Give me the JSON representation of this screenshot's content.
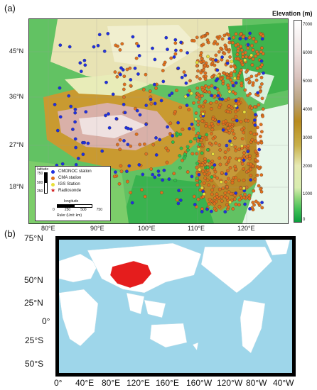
{
  "panel_a": {
    "label": "(a)",
    "colorbar": {
      "title": "Elevation (m)",
      "ticks": [
        "7000",
        "6000",
        "5000",
        "4000",
        "3000",
        "2000",
        "1000",
        "0"
      ],
      "colors": [
        "#0b9e3e",
        "#3fbf55",
        "#8fd77a",
        "#d9edb0",
        "#e6e9b3",
        "#c8b04a",
        "#b88a1e",
        "#b9a27c",
        "#d9c2bd",
        "#efe3e3",
        "#ffffff"
      ]
    },
    "lat_labels": [
      "45°N",
      "36°N",
      "27°N",
      "18°N"
    ],
    "lon_labels": [
      "80°E",
      "90°E",
      "100°E",
      "110°E",
      "120°E"
    ],
    "legend": {
      "items": [
        {
          "label": "CMONOC station",
          "color": "#1f2fe0"
        },
        {
          "label": "CMA station",
          "color": "#e0701c"
        },
        {
          "label": "IGS Station",
          "color": "#e8e03a"
        },
        {
          "label": "Radiosonde",
          "color": "#d11a1a"
        }
      ],
      "latitude_label": "latitude",
      "lat_ticks": [
        "750",
        "500",
        "250"
      ],
      "longitude_label": "longitude",
      "lon_ticks": [
        "0",
        "250",
        "500",
        "750"
      ],
      "ruler_label": "Ruler (Unit: km)"
    }
  },
  "panel_b": {
    "label": "(b)",
    "lat_labels": [
      "75°N",
      "50°N",
      "25°N",
      "0°",
      "25°S",
      "50°S"
    ],
    "lon_labels": [
      "0°",
      "40°E",
      "80°E",
      "120°E",
      "160°E",
      "160°W",
      "120°W",
      "80°W",
      "40°W"
    ],
    "colors": {
      "ocean": "#9ed6ea",
      "land": "#ffffff",
      "highlight": "#e51d1d"
    }
  }
}
